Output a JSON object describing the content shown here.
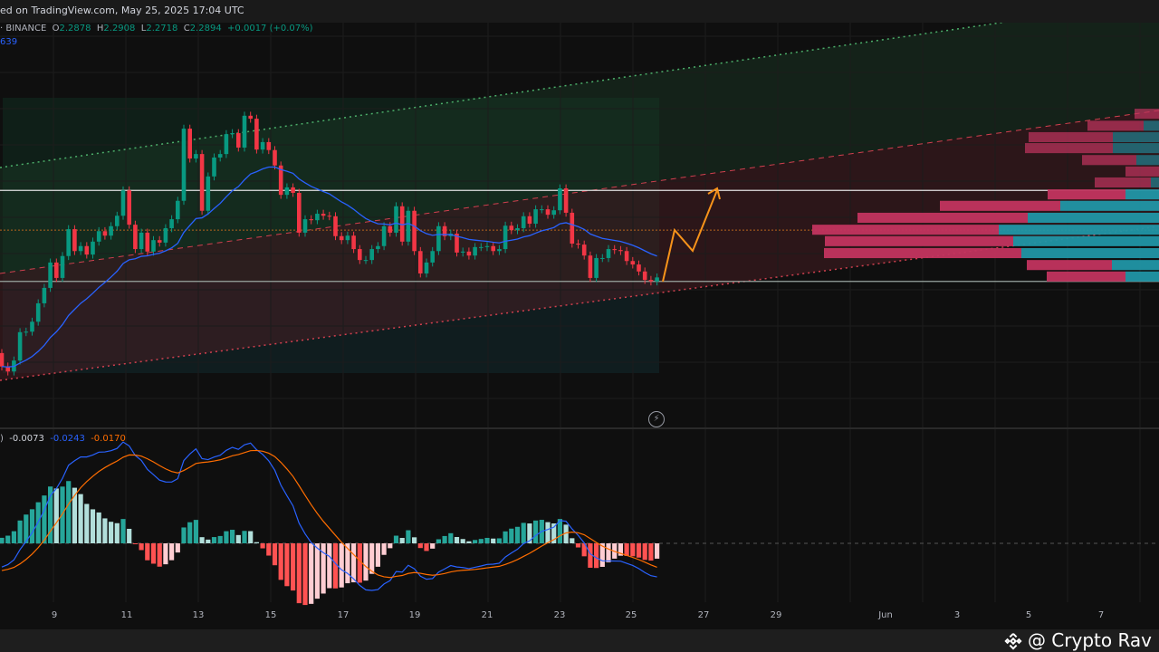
{
  "header": {
    "published_text": "ed on TradingView.com, May 25, 2025 17:04 UTC",
    "symbol_suffix": "· BINANCE",
    "open_label": "O",
    "open": "2.2878",
    "high_label": "H",
    "high": "2.2908",
    "low_label": "L",
    "low": "2.2718",
    "close_label": "C",
    "close": "2.2894",
    "change": "+0.0017 (+0.07%)",
    "ma_value": "639"
  },
  "macd_legend": {
    "prefix": ")",
    "histogram": "-0.0073",
    "macd": "-0.0243",
    "signal": "-0.0170"
  },
  "watermark": "@ Crypto Rav",
  "colors": {
    "up": "#089981",
    "down": "#f23645",
    "ma": "#2962ff",
    "macd": "#2962ff",
    "signal": "#ff6d00",
    "hist_up_strong": "#26a69a",
    "hist_up_weak": "#b2dfdb",
    "hist_down_strong": "#ff5252",
    "hist_down_weak": "#ffcdd2",
    "profile_sell": "#c2345f",
    "profile_buy": "#2196a6",
    "projection": "#f7931a"
  },
  "icons": {
    "replay": "lightning-icon",
    "logo": "binance-diamond-icon"
  },
  "chart_data": {
    "type": "candlestick",
    "timeframe_hint": "4h",
    "x_tick_labels": [
      "9",
      "11",
      "13",
      "15",
      "17",
      "19",
      "21",
      "23",
      "25",
      "27",
      "29",
      "Jun",
      "3",
      "5",
      "7"
    ],
    "first_open": 2.137,
    "closes": [
      2.11,
      2.1,
      2.122,
      2.179,
      2.18,
      2.2,
      2.237,
      2.268,
      2.319,
      2.288,
      2.332,
      2.386,
      2.342,
      2.352,
      2.335,
      2.361,
      2.382,
      2.373,
      2.392,
      2.413,
      2.464,
      2.395,
      2.346,
      2.379,
      2.341,
      2.364,
      2.359,
      2.388,
      2.406,
      2.443,
      2.588,
      2.528,
      2.537,
      2.423,
      2.492,
      2.53,
      2.537,
      2.577,
      2.579,
      2.55,
      2.614,
      2.608,
      2.546,
      2.561,
      2.545,
      2.514,
      2.455,
      2.47,
      2.459,
      2.379,
      2.406,
      2.404,
      2.417,
      2.413,
      2.412,
      2.372,
      2.364,
      2.373,
      2.346,
      2.324,
      2.324,
      2.346,
      2.352,
      2.392,
      2.379,
      2.432,
      2.361,
      2.423,
      2.342,
      2.297,
      2.319,
      2.342,
      2.392,
      2.372,
      2.377,
      2.339,
      2.341,
      2.333,
      2.35,
      2.35,
      2.352,
      2.342,
      2.346,
      2.393,
      2.384,
      2.388,
      2.412,
      2.397,
      2.426,
      2.426,
      2.415,
      2.424,
      2.468,
      2.419,
      2.357,
      2.355,
      2.333,
      2.288,
      2.328,
      2.328,
      2.346,
      2.344,
      2.342,
      2.322,
      2.315,
      2.301,
      2.284,
      2.281,
      2.289
    ],
    "horizontal_levels": [
      2.464,
      2.281
    ],
    "poc_level": 2.384,
    "indicators": [
      "Moving Average",
      "MACD"
    ],
    "volume_profile": {
      "row_height": 0.022,
      "rows": [
        {
          "price": 2.628,
          "sell": 27,
          "buy": 0
        },
        {
          "price": 2.604,
          "sell": 62,
          "buy": 17
        },
        {
          "price": 2.581,
          "sell": 93,
          "buy": 51
        },
        {
          "price": 2.559,
          "sell": 97,
          "buy": 51
        },
        {
          "price": 2.535,
          "sell": 60,
          "buy": 25
        },
        {
          "price": 2.512,
          "sell": 37,
          "buy": 0
        },
        {
          "price": 2.49,
          "sell": 62,
          "buy": 9
        },
        {
          "price": 2.466,
          "sell": 86,
          "buy": 37
        },
        {
          "price": 2.443,
          "sell": 133,
          "buy": 109
        },
        {
          "price": 2.419,
          "sell": 188,
          "buy": 145
        },
        {
          "price": 2.395,
          "sell": 206,
          "buy": 177
        },
        {
          "price": 2.372,
          "sell": 208,
          "buy": 161
        },
        {
          "price": 2.348,
          "sell": 218,
          "buy": 152
        },
        {
          "price": 2.324,
          "sell": 94,
          "buy": 52
        },
        {
          "price": 2.301,
          "sell": 87,
          "buy": 37
        }
      ]
    }
  }
}
